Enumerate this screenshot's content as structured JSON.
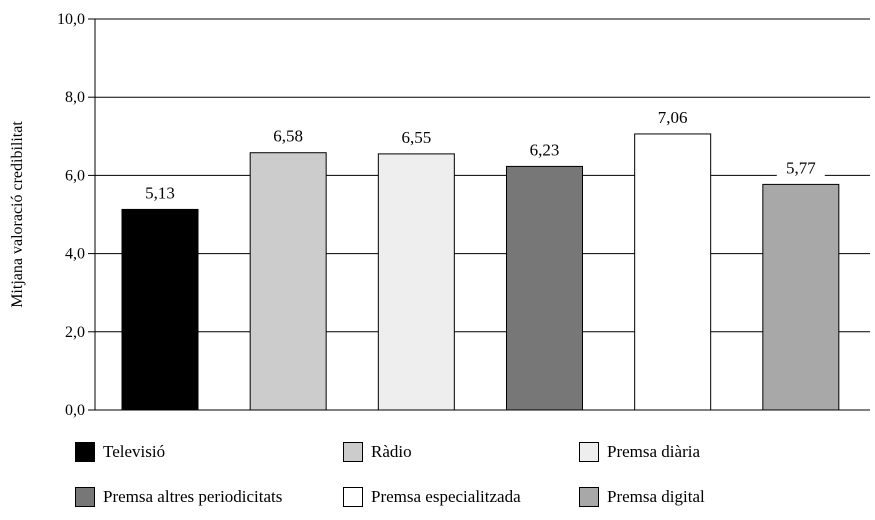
{
  "chart_data": {
    "type": "bar",
    "categories": [
      "Televisió",
      "Ràdio",
      "Premsa diària",
      "Premsa altres periodicitats",
      "Premsa especialitzada",
      "Premsa digital"
    ],
    "values": [
      5.13,
      6.58,
      6.55,
      6.23,
      7.06,
      5.77
    ],
    "value_labels": [
      "5,13",
      "6,58",
      "6,55",
      "6,23",
      "7,06",
      "5,77"
    ],
    "colors": [
      "#000000",
      "#cccccc",
      "#eeeeee",
      "#777777",
      "#ffffff",
      "#a8a8a8"
    ],
    "ylabel": "Mitjana valoració credibilitat",
    "ylim": [
      0,
      10
    ],
    "yticks": [
      0,
      2,
      4,
      6,
      8,
      10
    ],
    "ytick_labels": [
      "0,0",
      "2,0",
      "4,0",
      "6,0",
      "8,0",
      "10,0"
    ],
    "grid": true,
    "legend_position": "bottom"
  }
}
